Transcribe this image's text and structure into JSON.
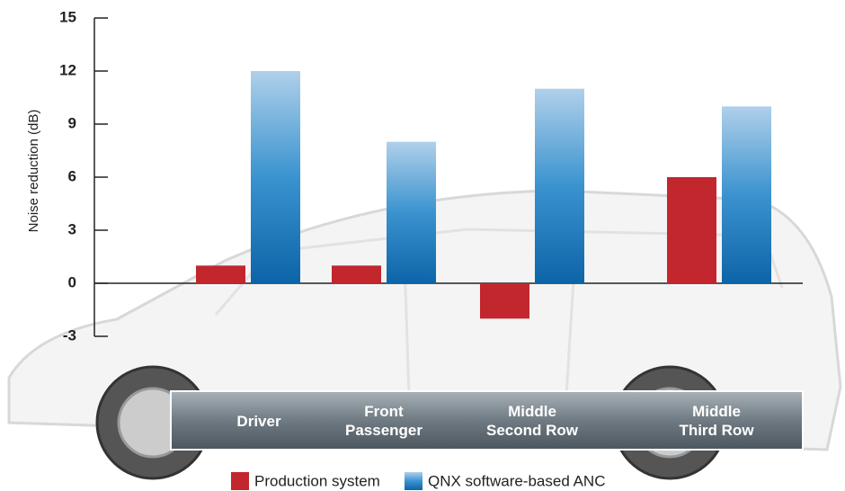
{
  "chart_data": {
    "type": "bar",
    "y_label": "Noise reduction (dB)",
    "categories": [
      "Driver",
      "Front\nPassenger",
      "Middle\nSecond Row",
      "Middle\nThird Row"
    ],
    "series": [
      {
        "name": "Production system",
        "color": "#c1272d",
        "values": [
          1,
          1,
          -2,
          6
        ]
      },
      {
        "name": "QNX software-based ANC",
        "color": "#1177bb",
        "values": [
          12,
          8,
          11,
          10
        ]
      }
    ],
    "ylim": [
      -3,
      15
    ],
    "yticks": [
      -3,
      0,
      3,
      6,
      9,
      12,
      15
    ]
  }
}
